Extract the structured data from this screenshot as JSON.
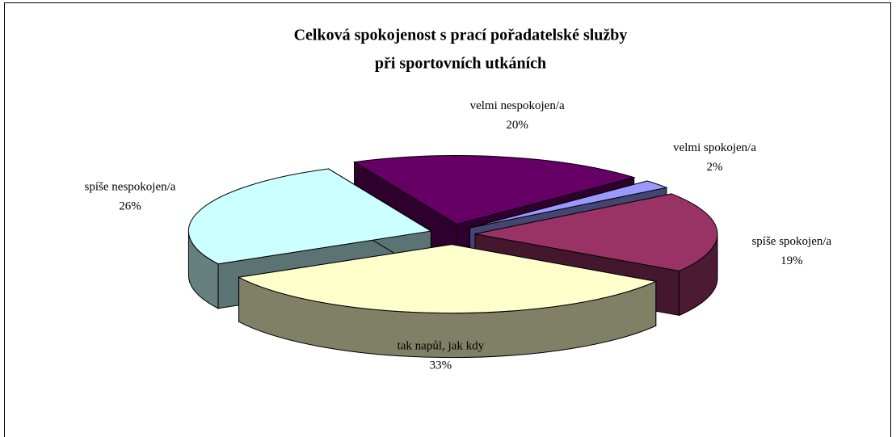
{
  "chart_data": {
    "type": "pie3d",
    "title": [
      "Celková spokojenost s prací pořadatelské služby",
      "při sportovních utkáních"
    ],
    "categories": [
      "velmi nespokojen/a",
      "velmi spokojen/a",
      "spíše spokojen/a",
      "tak napůl, jak kdy",
      "spíše nespokojen/a"
    ],
    "values": [
      20,
      2,
      19,
      33,
      26
    ],
    "value_labels": [
      "20%",
      "2%",
      "19%",
      "33%",
      "26%"
    ],
    "colors": [
      "#660066",
      "#9999ff",
      "#993366",
      "#ffffcc",
      "#ccffff"
    ]
  }
}
